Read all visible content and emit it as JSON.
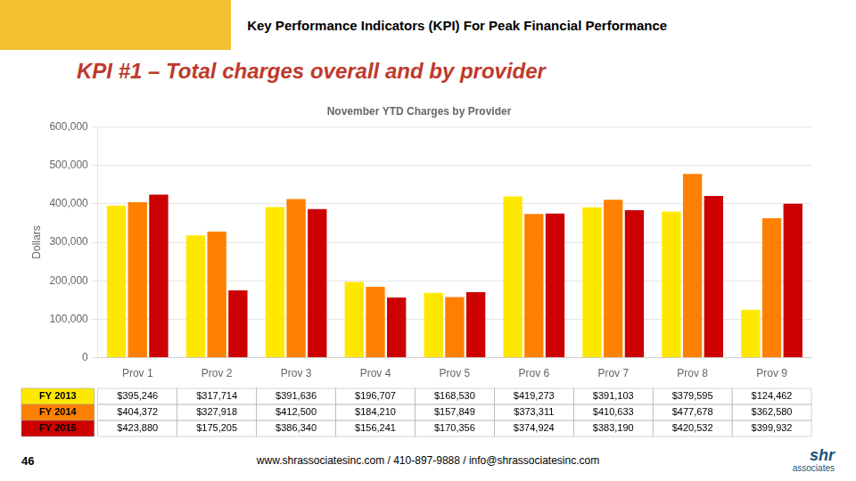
{
  "chart_data": {
    "type": "bar",
    "title": "November YTD Charges by Provider",
    "ylabel": "Dollars",
    "categories": [
      "Prov 1",
      "Prov 2",
      "Prov 3",
      "Prov 4",
      "Prov 5",
      "Prov 6",
      "Prov 7",
      "Prov 8",
      "Prov 9"
    ],
    "series": [
      {
        "name": "FY 2013",
        "color": "#FFE800",
        "values": [
          395246,
          317714,
          391636,
          196707,
          168530,
          419273,
          391103,
          379595,
          124462
        ],
        "value_labels": [
          "$395,246",
          "$317,714",
          "$391,636",
          "$196,707",
          "$168,530",
          "$419,273",
          "$391,103",
          "$379,595",
          "$124,462"
        ]
      },
      {
        "name": "FY 2014",
        "color": "#FF8000",
        "values": [
          404372,
          327918,
          412500,
          184210,
          157849,
          373311,
          410633,
          477678,
          362580
        ],
        "value_labels": [
          "$404,372",
          "$327,918",
          "$412,500",
          "$184,210",
          "$157,849",
          "$373,311",
          "$410,633",
          "$477,678",
          "$362,580"
        ]
      },
      {
        "name": "FY 2015",
        "color": "#CC0000",
        "values": [
          423880,
          175205,
          386340,
          156241,
          170356,
          374924,
          383190,
          420532,
          399932
        ],
        "value_labels": [
          "$423,880",
          "$175,205",
          "$386,340",
          "$156,241",
          "$170,356",
          "$374,924",
          "$383,190",
          "$420,532",
          "$399,932"
        ]
      }
    ],
    "ylim": [
      0,
      600000
    ],
    "yticks": [
      0,
      {
        "value": 100000,
        "label": "100,000"
      },
      {
        "value": 200000,
        "label": "200,000"
      },
      {
        "value": 300000,
        "label": "300,000"
      },
      {
        "value": 400000,
        "label": "400,000"
      },
      {
        "value": 500000,
        "label": "500,000"
      },
      {
        "value": 600000,
        "label": "600,000"
      }
    ],
    "grid": true,
    "annotations": [
      "Key Performance Indicators (KPI) For Peak Financial Performance",
      "KPI #1 – Total charges overall and by provider",
      "www.shrassociatesinc.com / 410-897-9888 / info@shrassociatesinc.com",
      "46",
      "shr",
      "associates"
    ]
  }
}
